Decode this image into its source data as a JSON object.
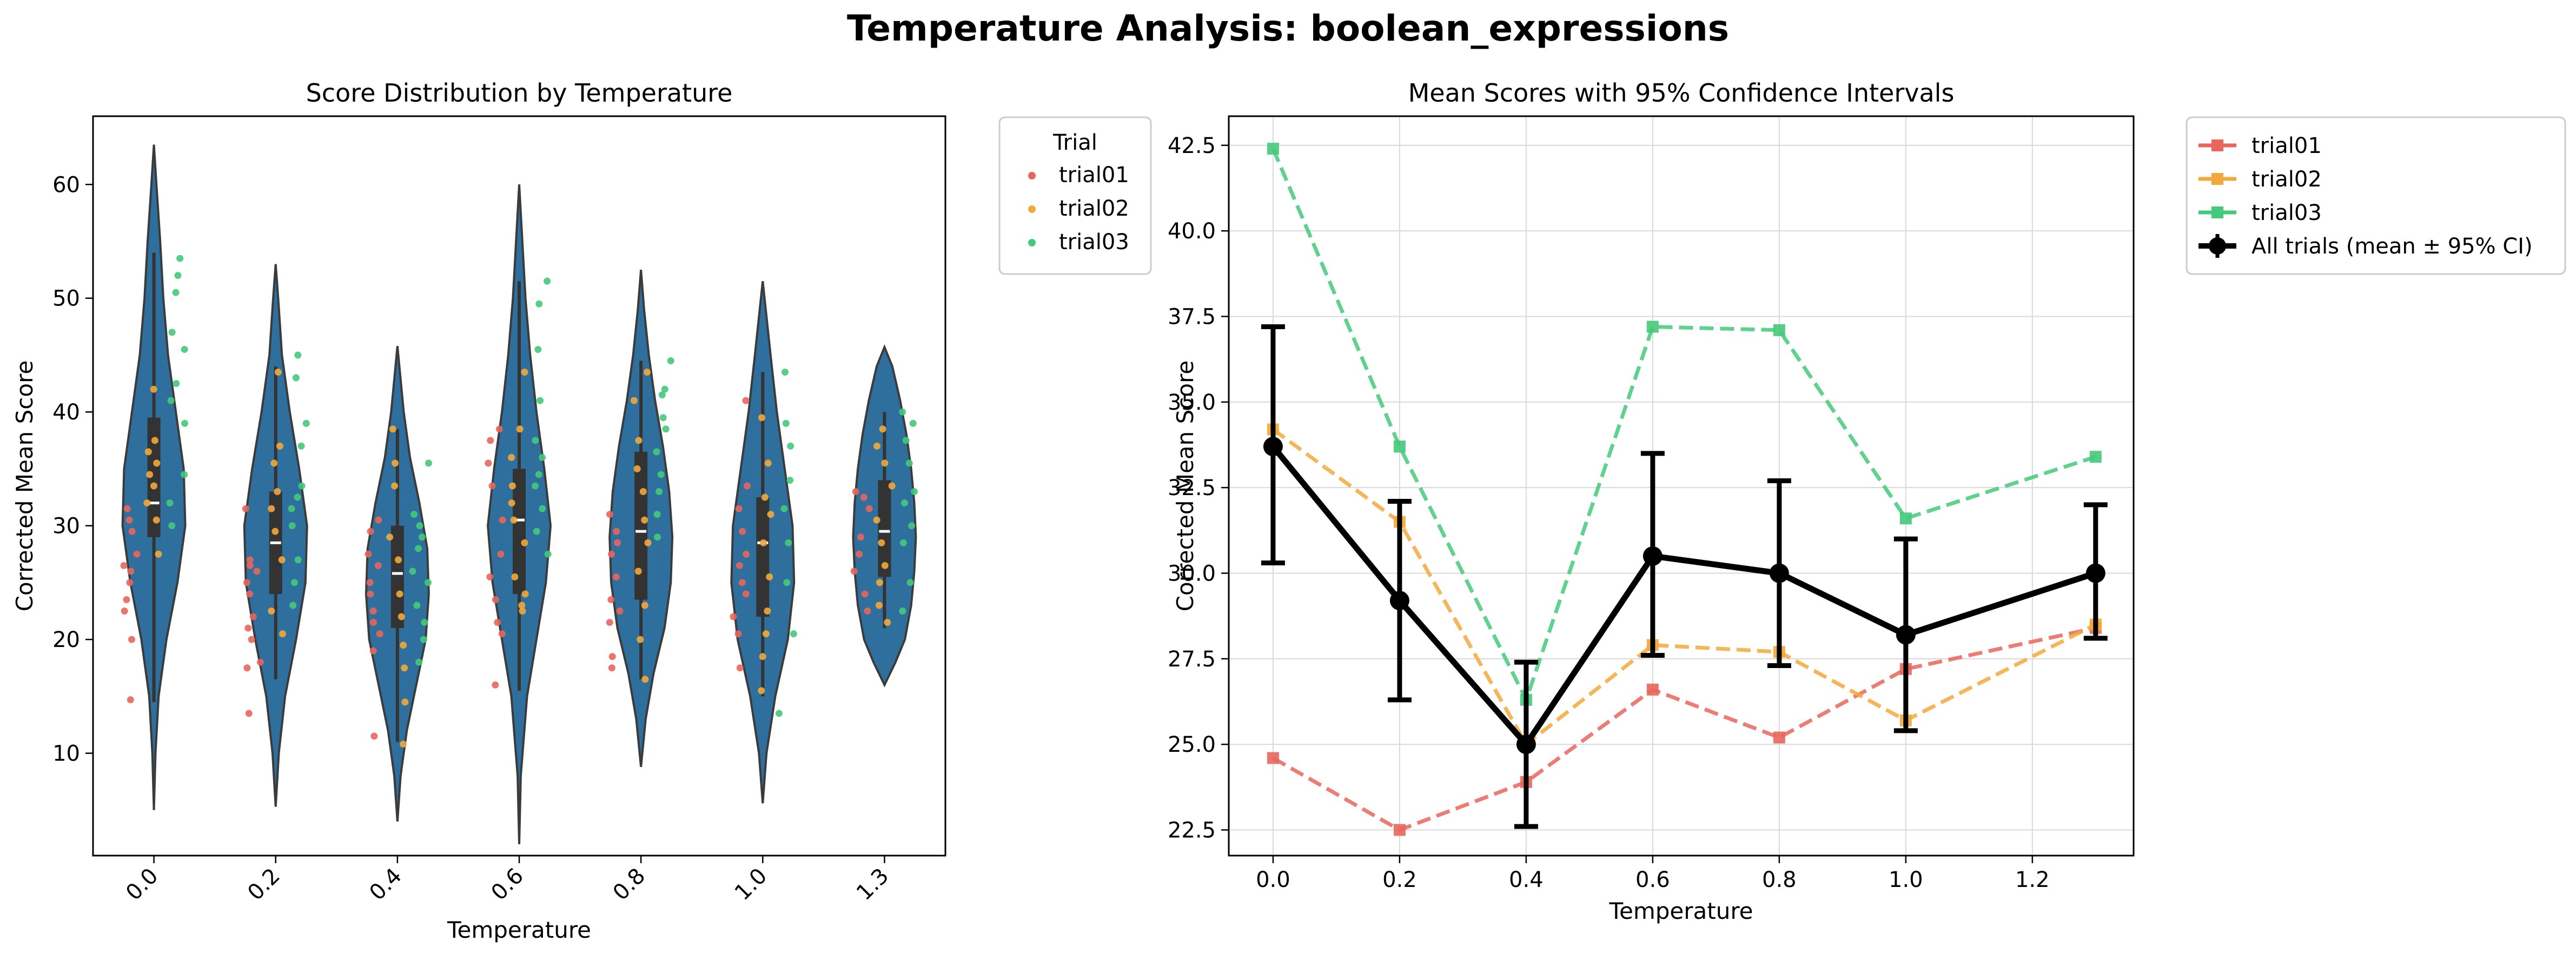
{
  "figure": {
    "title": "Temperature Analysis: boolean_expressions"
  },
  "chart_data": [
    {
      "type": "violin",
      "title": "Score Distribution by Temperature",
      "xlabel": "Temperature",
      "ylabel": "Corrected Mean Score",
      "categories": [
        "0.0",
        "0.2",
        "0.4",
        "0.6",
        "0.8",
        "1.0",
        "1.3"
      ],
      "ylim": [
        1,
        66
      ],
      "yticks": [
        10,
        20,
        30,
        40,
        50,
        60
      ],
      "legend": {
        "title": "Trial",
        "entries": [
          "trial01",
          "trial02",
          "trial03"
        ],
        "placement": "outside-top-right"
      },
      "series_colors": {
        "trial01": "#e8665c",
        "trial02": "#f2a93b",
        "trial03": "#45c97a"
      },
      "violin_color": "#2e6f9e",
      "distributions": [
        {
          "category": "0.0",
          "min": 5,
          "max": 63.5,
          "q1": 29,
          "median": 32,
          "q3": 39.5,
          "whisker_low": 14.5,
          "whisker_high": 54,
          "profile": [
            [
              5,
              0
            ],
            [
              10,
              0.05
            ],
            [
              15,
              0.15
            ],
            [
              20,
              0.4
            ],
            [
              25,
              0.75
            ],
            [
              30,
              1.0
            ],
            [
              35,
              0.95
            ],
            [
              40,
              0.7
            ],
            [
              45,
              0.45
            ],
            [
              50,
              0.3
            ],
            [
              55,
              0.2
            ],
            [
              60,
              0.08
            ],
            [
              63.5,
              0
            ]
          ],
          "points": {
            "trial01": [
              14.7,
              20,
              22.5,
              23.5,
              25,
              26,
              26.5,
              27.5,
              29.5,
              30.5,
              31.5
            ],
            "trial02": [
              27.5,
              30.5,
              32,
              33.5,
              34.5,
              35.5,
              36.5,
              37.5,
              42
            ],
            "trial03": [
              30,
              32,
              34.5,
              39,
              41,
              42.5,
              45.5,
              47,
              50.5,
              52,
              53.5
            ]
          }
        },
        {
          "category": "0.2",
          "min": 5.3,
          "max": 53,
          "q1": 24,
          "median": 28.5,
          "q3": 33,
          "whisker_low": 16.5,
          "whisker_high": 44,
          "profile": [
            [
              5.3,
              0
            ],
            [
              10,
              0.1
            ],
            [
              15,
              0.3
            ],
            [
              20,
              0.65
            ],
            [
              25,
              0.95
            ],
            [
              30,
              1.0
            ],
            [
              35,
              0.75
            ],
            [
              40,
              0.45
            ],
            [
              45,
              0.2
            ],
            [
              50,
              0.08
            ],
            [
              53,
              0
            ]
          ],
          "points": {
            "trial01": [
              13.5,
              17.5,
              18,
              20,
              21,
              22,
              24,
              25,
              26,
              26.5,
              27,
              31.5
            ],
            "trial02": [
              20.5,
              22.5,
              27,
              29.5,
              31.5,
              33,
              35.5,
              37,
              43.5
            ],
            "trial03": [
              23,
              25,
              27,
              30,
              31.5,
              32.5,
              33.5,
              37,
              39,
              43,
              45
            ]
          }
        },
        {
          "category": "0.4",
          "min": 4,
          "max": 45.8,
          "q1": 21,
          "median": 25.8,
          "q3": 30,
          "whisker_low": 11,
          "whisker_high": 38.5,
          "profile": [
            [
              4,
              0
            ],
            [
              8,
              0.1
            ],
            [
              12,
              0.3
            ],
            [
              16,
              0.6
            ],
            [
              20,
              0.9
            ],
            [
              24,
              1.0
            ],
            [
              28,
              0.95
            ],
            [
              32,
              0.7
            ],
            [
              36,
              0.4
            ],
            [
              40,
              0.2
            ],
            [
              45.8,
              0
            ]
          ],
          "points": {
            "trial01": [
              11.5,
              19,
              20.5,
              21.5,
              22.5,
              24,
              25,
              26.5,
              27.5,
              29.5,
              30.5
            ],
            "trial02": [
              10.8,
              14.5,
              17.5,
              19.5,
              22,
              24,
              27,
              29,
              33.5,
              35.5,
              38.5
            ],
            "trial03": [
              18,
              20,
              21.5,
              23,
              25,
              26,
              28,
              29,
              30,
              31,
              35.5
            ]
          }
        },
        {
          "category": "0.6",
          "min": 2,
          "max": 60,
          "q1": 24,
          "median": 30.5,
          "q3": 35,
          "whisker_low": 15.5,
          "whisker_high": 51.5,
          "profile": [
            [
              2,
              0
            ],
            [
              8,
              0.05
            ],
            [
              15,
              0.25
            ],
            [
              20,
              0.55
            ],
            [
              25,
              0.85
            ],
            [
              30,
              1.0
            ],
            [
              35,
              0.8
            ],
            [
              40,
              0.55
            ],
            [
              45,
              0.35
            ],
            [
              50,
              0.2
            ],
            [
              55,
              0.1
            ],
            [
              60,
              0
            ]
          ],
          "points": {
            "trial01": [
              16,
              20.5,
              21.5,
              23.5,
              25.5,
              27.5,
              30.5,
              33.5,
              35.5,
              37.5,
              38.5
            ],
            "trial02": [
              22.5,
              23,
              24,
              25.5,
              28.5,
              30.5,
              32,
              33.5,
              36,
              38.5,
              43.5
            ],
            "trial03": [
              27.5,
              29.5,
              31.5,
              33.5,
              34.5,
              36,
              37.5,
              41,
              45.5,
              49.5,
              51.5
            ]
          }
        },
        {
          "category": "0.8",
          "min": 8.8,
          "max": 52.5,
          "q1": 23.5,
          "median": 29.5,
          "q3": 36.5,
          "whisker_low": 16.5,
          "whisker_high": 44.5,
          "profile": [
            [
              8.8,
              0
            ],
            [
              13,
              0.15
            ],
            [
              17,
              0.4
            ],
            [
              21,
              0.75
            ],
            [
              25,
              0.95
            ],
            [
              29,
              1.0
            ],
            [
              33,
              0.9
            ],
            [
              37,
              0.7
            ],
            [
              41,
              0.45
            ],
            [
              45,
              0.25
            ],
            [
              49,
              0.1
            ],
            [
              52.5,
              0
            ]
          ],
          "points": {
            "trial01": [
              17.5,
              18.5,
              21.5,
              22.5,
              23.5,
              25.5,
              27.5,
              28.5,
              29.5,
              31
            ],
            "trial02": [
              16.5,
              20,
              23,
              26,
              28.5,
              30.5,
              33,
              35,
              37.5,
              41,
              43.5
            ],
            "trial03": [
              29,
              31,
              33,
              34.5,
              36.5,
              38.5,
              39.5,
              41.5,
              42,
              44.5
            ]
          }
        },
        {
          "category": "1.0",
          "min": 5.6,
          "max": 51.5,
          "q1": 22,
          "median": 28.5,
          "q3": 32.5,
          "whisker_low": 15,
          "whisker_high": 43.5,
          "profile": [
            [
              5.6,
              0
            ],
            [
              10,
              0.12
            ],
            [
              15,
              0.4
            ],
            [
              20,
              0.8
            ],
            [
              25,
              1.0
            ],
            [
              30,
              0.95
            ],
            [
              35,
              0.7
            ],
            [
              40,
              0.45
            ],
            [
              45,
              0.25
            ],
            [
              51.5,
              0
            ]
          ],
          "points": {
            "trial01": [
              17.5,
              20.5,
              22,
              24,
              25,
              26.5,
              27.5,
              29.5,
              31.5,
              33.5,
              41
            ],
            "trial02": [
              15.5,
              18.5,
              20.5,
              22.5,
              25.5,
              28.5,
              31,
              32.5,
              35.5,
              39.5
            ],
            "trial03": [
              13.5,
              20.5,
              25,
              28.5,
              31.5,
              34,
              37,
              39,
              43.5
            ]
          }
        },
        {
          "category": "1.3",
          "min": 16,
          "max": 45.7,
          "q1": 25.5,
          "median": 29.5,
          "q3": 34,
          "whisker_low": 21,
          "whisker_high": 40,
          "profile": [
            [
              16,
              0
            ],
            [
              18,
              0.35
            ],
            [
              20,
              0.65
            ],
            [
              23,
              0.85
            ],
            [
              26,
              0.95
            ],
            [
              29,
              1.0
            ],
            [
              32,
              0.95
            ],
            [
              35,
              0.85
            ],
            [
              38,
              0.7
            ],
            [
              41,
              0.5
            ],
            [
              44,
              0.25
            ],
            [
              45.7,
              0
            ]
          ],
          "points": {
            "trial01": [
              22.5,
              24,
              26,
              27.5,
              29,
              31.5,
              32.5,
              33
            ],
            "trial02": [
              21.5,
              23,
              25,
              26.5,
              28.5,
              30.5,
              33.5,
              35.5,
              37,
              38.5
            ],
            "trial03": [
              22.5,
              25,
              28.5,
              30,
              32,
              33,
              35.5,
              37.5,
              39,
              40
            ]
          }
        }
      ]
    },
    {
      "type": "line",
      "title": "Mean Scores with 95% Confidence Intervals",
      "xlabel": "Temperature",
      "ylabel": "Corrected Mean Score",
      "x": [
        0.0,
        0.2,
        0.4,
        0.6,
        0.8,
        1.0,
        1.3
      ],
      "xlim": [
        -0.07,
        1.36
      ],
      "ylim": [
        21.75,
        43.35
      ],
      "xticks": [
        "0.0",
        "0.2",
        "0.4",
        "0.6",
        "0.8",
        "1.0",
        "1.2"
      ],
      "yticks": [
        "22.5",
        "25.0",
        "27.5",
        "30.0",
        "32.5",
        "35.0",
        "37.5",
        "40.0",
        "42.5"
      ],
      "grid": true,
      "legend_placement": "outside-top-right",
      "series": [
        {
          "name": "trial01",
          "color": "#e8665c",
          "values": [
            24.6,
            22.5,
            23.9,
            26.6,
            25.2,
            27.2,
            28.4
          ]
        },
        {
          "name": "trial02",
          "color": "#f2a93b",
          "values": [
            34.2,
            31.5,
            25.0,
            27.9,
            27.7,
            25.7,
            28.5
          ]
        },
        {
          "name": "trial03",
          "color": "#45c97a",
          "values": [
            42.4,
            33.7,
            26.3,
            37.2,
            37.1,
            31.6,
            33.4
          ]
        }
      ],
      "aggregate": {
        "name": "All trials (mean ± 95% CI)",
        "color": "#000000",
        "values": [
          33.7,
          29.2,
          25.0,
          30.5,
          30.0,
          28.2,
          30.0
        ],
        "ci_low": [
          30.3,
          26.3,
          22.6,
          27.6,
          27.3,
          25.4,
          28.1
        ],
        "ci_high": [
          37.2,
          32.1,
          27.4,
          33.5,
          32.7,
          31.0,
          32.0
        ]
      }
    }
  ]
}
